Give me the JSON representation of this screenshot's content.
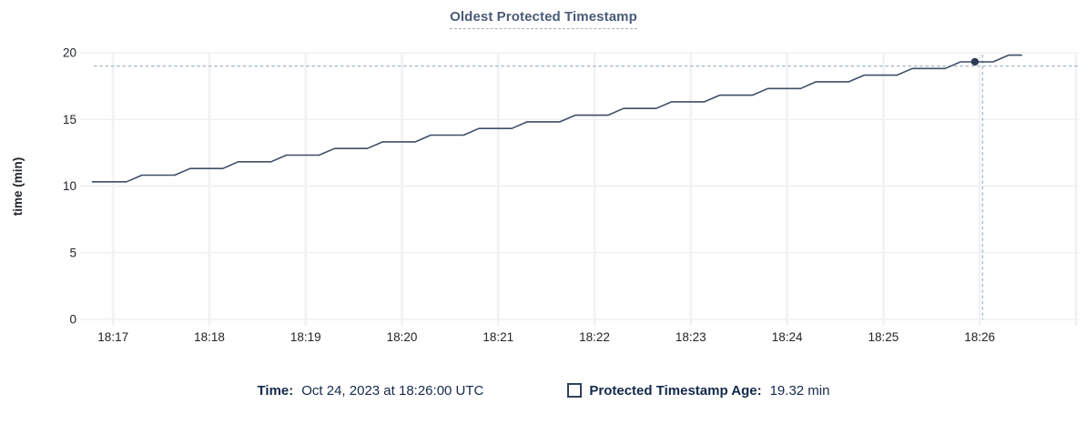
{
  "title": "Oldest Protected Timestamp",
  "colors": {
    "series": "#3f4e66",
    "dot": "#2c3a52",
    "crosshair": "#a3b5c1",
    "grid_h": "#e8eaec",
    "grid_v": "#f2f3f5",
    "tick_text": "#212529",
    "title_text": "#4a5b78",
    "title_underline": "#a9aeb6",
    "legend_text": "#13294b",
    "checkbox_border": "#2f4258"
  },
  "legend": {
    "time_label": "Time:",
    "time_value": "Oct 24, 2023 at 18:26:00 UTC",
    "series_label": "Protected Timestamp Age:",
    "series_value": "19.32 min"
  },
  "chart_data": {
    "type": "line",
    "title": "Oldest Protected Timestamp",
    "xlabel": "",
    "ylabel": "time (min)",
    "ylim": [
      0,
      20
    ],
    "y_ticks": [
      0,
      5,
      10,
      15,
      20
    ],
    "x_unit": "minutes after 18:00 UTC",
    "x_ticks": [
      {
        "t": 17,
        "label": "18:17"
      },
      {
        "t": 18,
        "label": "18:18"
      },
      {
        "t": 19,
        "label": "18:19"
      },
      {
        "t": 20,
        "label": "18:20"
      },
      {
        "t": 21,
        "label": "18:21"
      },
      {
        "t": 22,
        "label": "18:22"
      },
      {
        "t": 23,
        "label": "18:23"
      },
      {
        "t": 24,
        "label": "18:24"
      },
      {
        "t": 25,
        "label": "18:25"
      },
      {
        "t": 26,
        "label": "18:26"
      },
      {
        "t": 27,
        "label": ""
      }
    ],
    "series": [
      {
        "name": "Protected Timestamp Age",
        "points": [
          [
            16.78,
            10.32
          ],
          [
            17.14,
            10.32
          ],
          [
            17.3,
            10.82
          ],
          [
            17.64,
            10.82
          ],
          [
            17.8,
            11.32
          ],
          [
            18.14,
            11.32
          ],
          [
            18.3,
            11.82
          ],
          [
            18.64,
            11.82
          ],
          [
            18.8,
            12.32
          ],
          [
            19.14,
            12.32
          ],
          [
            19.3,
            12.82
          ],
          [
            19.64,
            12.82
          ],
          [
            19.8,
            13.32
          ],
          [
            20.14,
            13.32
          ],
          [
            20.3,
            13.82
          ],
          [
            20.64,
            13.82
          ],
          [
            20.8,
            14.32
          ],
          [
            21.14,
            14.32
          ],
          [
            21.3,
            14.82
          ],
          [
            21.64,
            14.82
          ],
          [
            21.8,
            15.32
          ],
          [
            22.14,
            15.32
          ],
          [
            22.3,
            15.82
          ],
          [
            22.64,
            15.82
          ],
          [
            22.8,
            16.32
          ],
          [
            23.14,
            16.32
          ],
          [
            23.3,
            16.82
          ],
          [
            23.64,
            16.82
          ],
          [
            23.8,
            17.32
          ],
          [
            24.14,
            17.32
          ],
          [
            24.3,
            17.82
          ],
          [
            24.64,
            17.82
          ],
          [
            24.8,
            18.32
          ],
          [
            25.14,
            18.32
          ],
          [
            25.3,
            18.82
          ],
          [
            25.64,
            18.82
          ],
          [
            25.8,
            19.32
          ],
          [
            26.14,
            19.32
          ],
          [
            26.3,
            19.82
          ],
          [
            26.44,
            19.82
          ]
        ]
      }
    ],
    "hover": {
      "point_t": 25.95,
      "point_value": 19.32,
      "crosshair_t": 26.03,
      "crosshair_value": 19.0
    },
    "grid": true,
    "legend_position": "bottom"
  }
}
